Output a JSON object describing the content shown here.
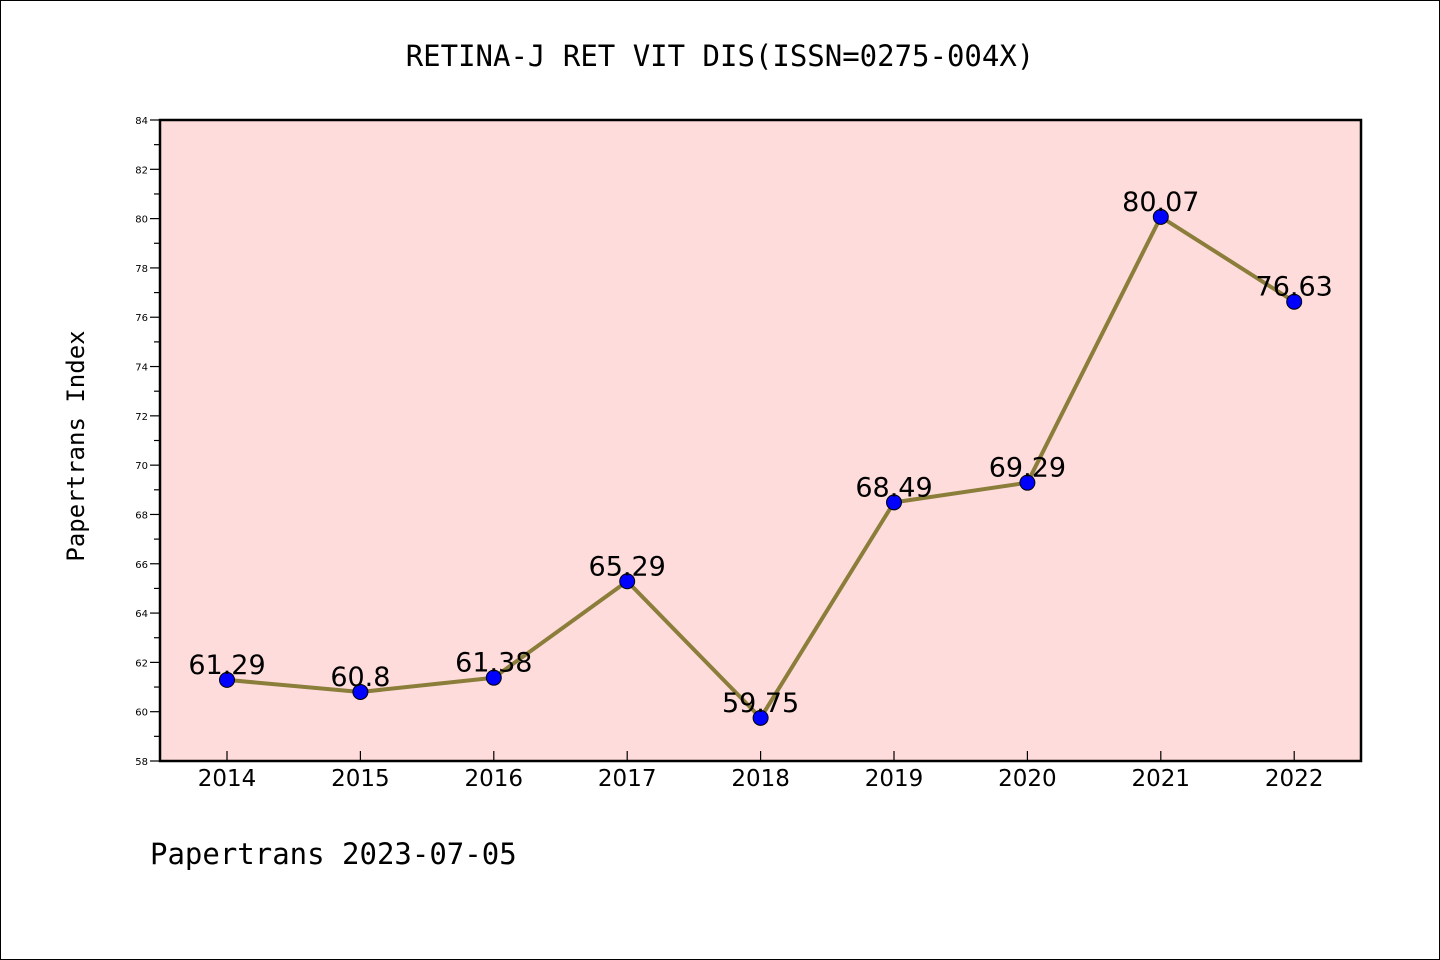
{
  "chart_data": {
    "type": "line",
    "title": "RETINA-J RET VIT DIS(ISSN=0275-004X)",
    "xlabel": "",
    "ylabel": "Papertrans Index",
    "categories": [
      "2014",
      "2015",
      "2016",
      "2017",
      "2018",
      "2019",
      "2020",
      "2021",
      "2022"
    ],
    "series": [
      {
        "values": [
          61.29,
          60.8,
          61.38,
          65.29,
          59.75,
          68.49,
          69.29,
          80.07,
          76.63
        ],
        "labels": [
          "61.29",
          "60.8",
          "61.38",
          "65.29",
          "59.75",
          "68.49",
          "69.29",
          "80.07",
          "76.63"
        ]
      }
    ],
    "ylim": [
      58,
      84
    ],
    "yticks": [
      "58",
      "60",
      "62",
      "64",
      "66",
      "68",
      "70",
      "72",
      "74",
      "76",
      "78",
      "80",
      "82",
      "84"
    ],
    "grid": false,
    "legend": "none",
    "colors": {
      "plot_background": "#ffdcdc",
      "line": "#8b7d3a",
      "marker": "#0000ff"
    }
  },
  "footer": {
    "text": "Papertrans 2023-07-05"
  }
}
